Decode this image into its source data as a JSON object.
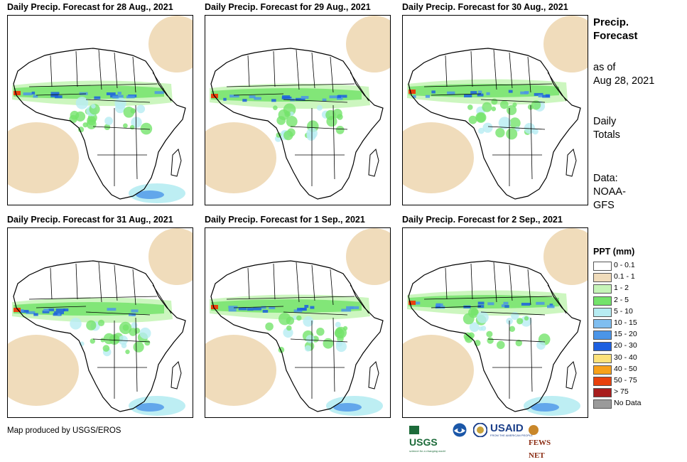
{
  "panels": [
    {
      "title": "Daily Precip. Forecast for 28 Aug., 2021"
    },
    {
      "title": "Daily Precip. Forecast for 29 Aug., 2021"
    },
    {
      "title": "Daily Precip. Forecast for 30 Aug., 2021"
    },
    {
      "title": "Daily Precip. Forecast for 31 Aug., 2021"
    },
    {
      "title": "Daily Precip. Forecast for 1 Sep., 2021"
    },
    {
      "title": "Daily Precip. Forecast for 2 Sep., 2021"
    }
  ],
  "sidebar": {
    "title_line1": "Precip.",
    "title_line2": "Forecast",
    "asof_line1": "as of",
    "asof_line2": "Aug 28, 2021",
    "totals_line1": "Daily",
    "totals_line2": "Totals",
    "data_line1": "Data:",
    "data_line2": "NOAA-",
    "data_line3": "GFS"
  },
  "legend": {
    "title": "PPT (mm)",
    "items": [
      {
        "label": "0 - 0.1",
        "color": "#ffffff"
      },
      {
        "label": "0.1 - 1",
        "color": "#f0dcbb"
      },
      {
        "label": "1 - 2",
        "color": "#c6f5b8"
      },
      {
        "label": "2 - 5",
        "color": "#74e36b"
      },
      {
        "label": "5 - 10",
        "color": "#b6ecf2"
      },
      {
        "label": "10 - 15",
        "color": "#7fbef0"
      },
      {
        "label": "15 - 20",
        "color": "#4b95e8"
      },
      {
        "label": "20 - 30",
        "color": "#1c5fe0"
      },
      {
        "label": "30 - 40",
        "color": "#fde27a"
      },
      {
        "label": "40 - 50",
        "color": "#f7a11a"
      },
      {
        "label": "50 - 75",
        "color": "#e8410d"
      },
      {
        "label": "> 75",
        "color": "#a81d1d"
      },
      {
        "label": "No Data",
        "color": "#9a9a9a"
      }
    ]
  },
  "credit": "Map produced by USGS/EROS",
  "logos": {
    "usgs": "USGS",
    "usgs_tagline": "science for a changing world",
    "usaid": "USAID",
    "usaid_tagline": "FROM THE AMERICAN PEOPLE",
    "fewsnet": "FEWS NET"
  },
  "colors": {
    "dry": "#f0dcbb",
    "light": "#c6f5b8",
    "green": "#74e36b",
    "blue": "#4b95e8",
    "deep": "#1c5fe0",
    "red": "#e8410d",
    "sky": "#b6ecf2"
  }
}
